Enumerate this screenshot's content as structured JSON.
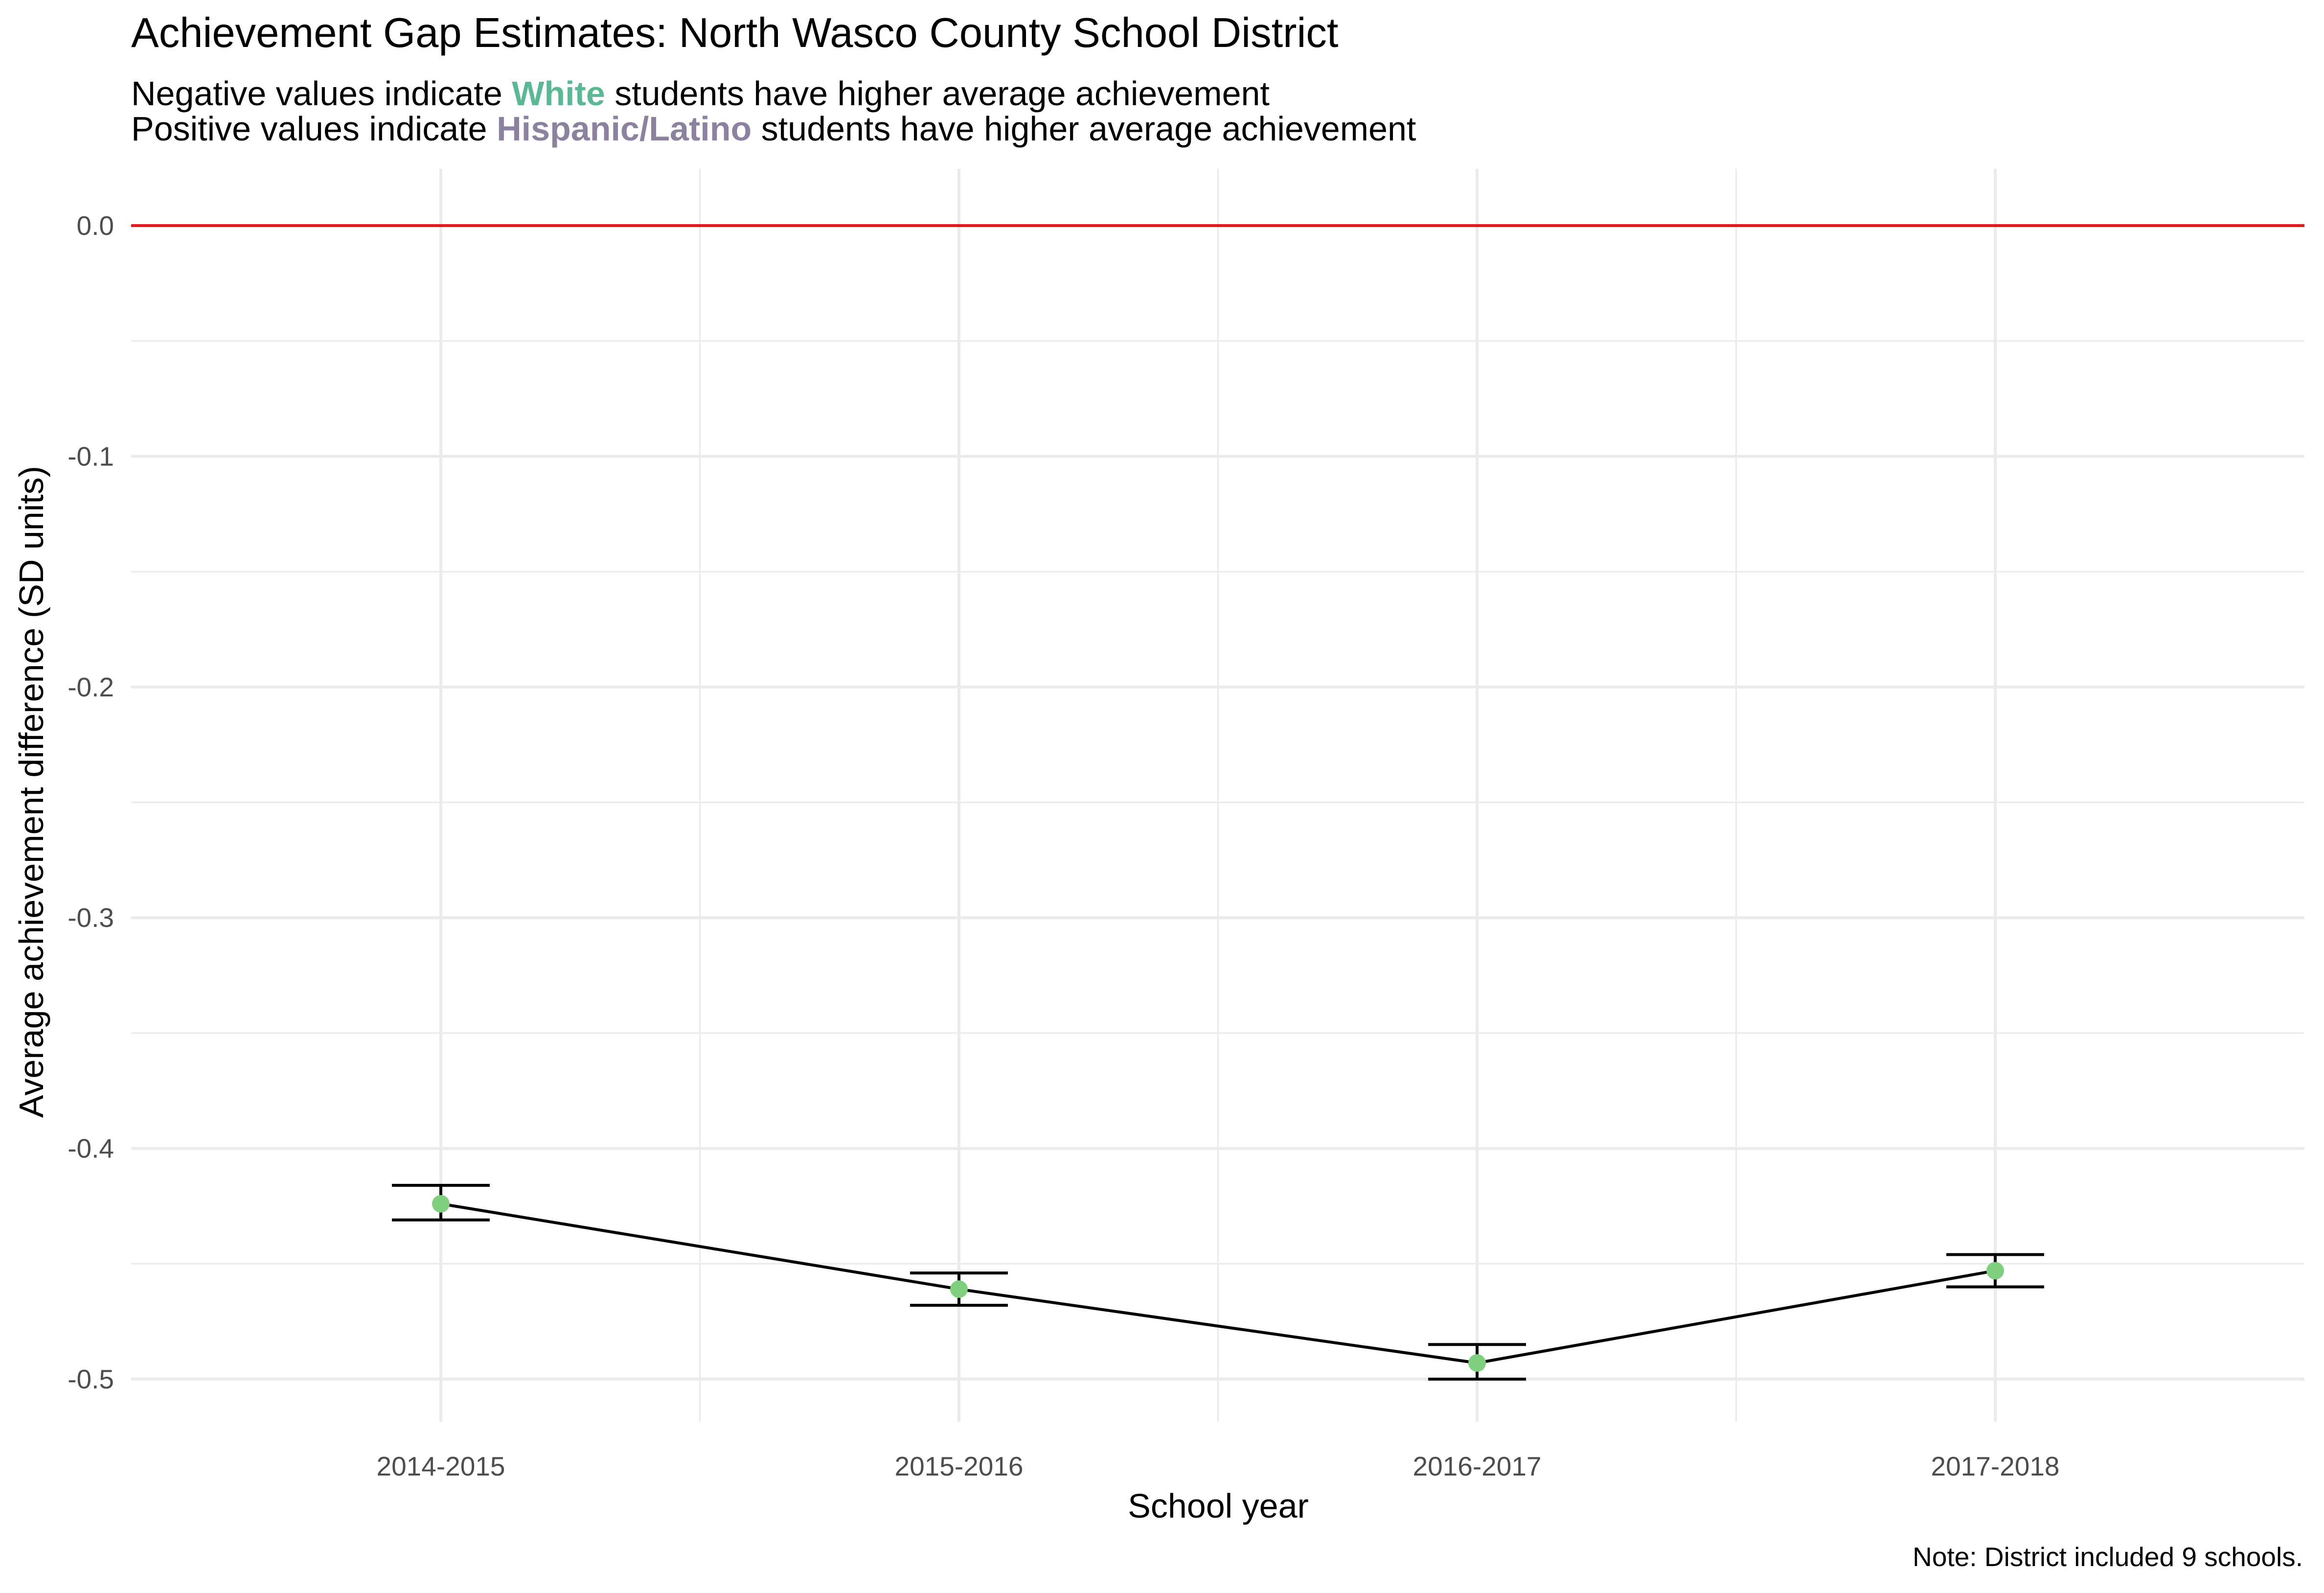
{
  "chart_data": {
    "type": "line",
    "title": "Achievement Gap Estimates: North Wasco County School District",
    "subtitle": [
      {
        "before": "Negative values indicate ",
        "highlight": "White",
        "after": " students have higher average achievement",
        "highlight_color": "#5cb894"
      },
      {
        "before": "Positive values indicate ",
        "highlight": "Hispanic/Latino",
        "after": " students have higher average achievement",
        "highlight_color": "#8c82a0"
      }
    ],
    "xlabel": "School year",
    "ylabel": "Average achievement difference (SD units)",
    "caption": "Note: District included 9 schools.",
    "categories": [
      "2014-2015",
      "2015-2016",
      "2016-2017",
      "2017-2018"
    ],
    "series": [
      {
        "values": [
          -0.424,
          -0.461,
          -0.493,
          -0.453
        ],
        "lower": [
          -0.431,
          -0.468,
          -0.5,
          -0.46
        ],
        "upper": [
          -0.416,
          -0.454,
          -0.485,
          -0.446
        ]
      }
    ],
    "ylim": [
      -0.525,
      0.025
    ],
    "yticks": [
      0.0,
      -0.1,
      -0.2,
      -0.3,
      -0.4,
      -0.5
    ],
    "ytick_labels": [
      "0.0",
      "-0.1",
      "-0.2",
      "-0.3",
      "-0.4",
      "-0.5"
    ],
    "reference_line": {
      "y": 0.0,
      "color": "#e41a1c"
    },
    "point_color": "#7fcf7f",
    "line_color": "#000000",
    "grid": true
  }
}
